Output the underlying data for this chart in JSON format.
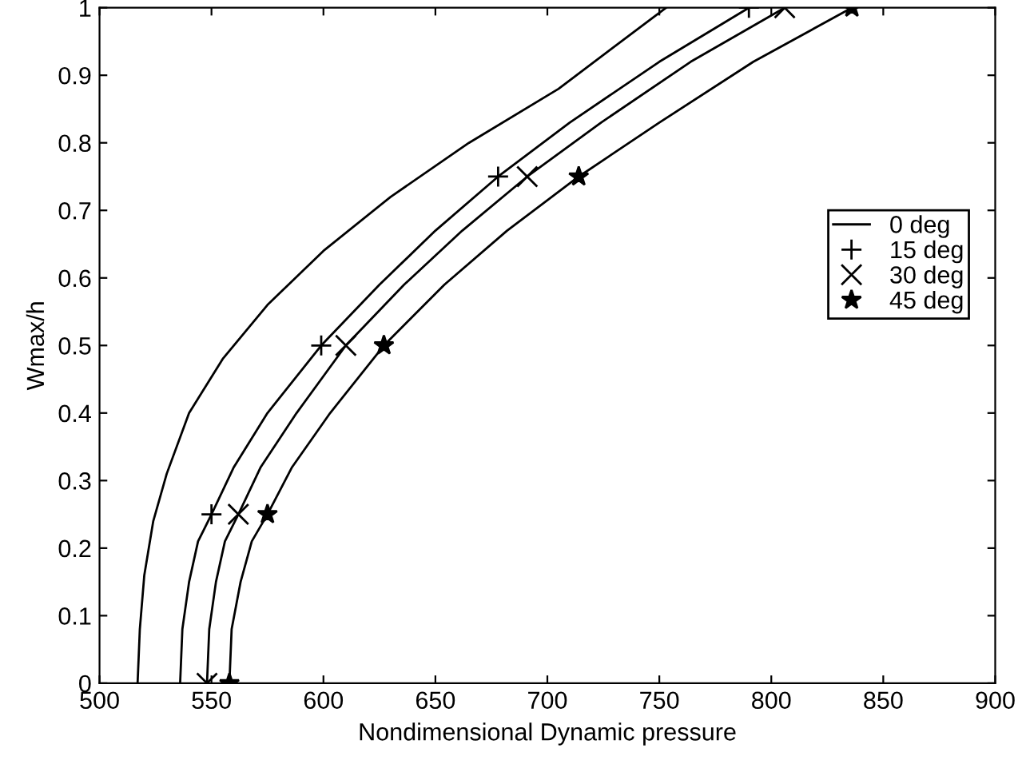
{
  "chart_data": {
    "type": "line",
    "xlabel": "Nondimensional Dynamic pressure",
    "ylabel": "Wmax/h",
    "xlim": [
      500,
      900
    ],
    "xticks": [
      500,
      550,
      600,
      650,
      700,
      750,
      800,
      850,
      900
    ],
    "ylim": [
      0,
      1
    ],
    "yticks": [
      0,
      0.1,
      0.2,
      0.3,
      0.4,
      0.5,
      0.6,
      0.7,
      0.8,
      0.9,
      1
    ],
    "grid": false,
    "legend": "right",
    "series": [
      {
        "name": "0 deg",
        "color": "#000000",
        "marker": "none",
        "x": [
          517,
          518,
          520,
          524,
          530,
          540,
          555,
          575,
          600,
          630,
          665,
          705,
          753
        ],
        "values": [
          0,
          0.08,
          0.16,
          0.24,
          0.31,
          0.4,
          0.48,
          0.56,
          0.64,
          0.72,
          0.8,
          0.88,
          1
        ]
      },
      {
        "color": "#000000",
        "marker": "none",
        "x": [
          536,
          537,
          540,
          544,
          550,
          560,
          575,
          599,
          625,
          650,
          678,
          710,
          750,
          790
        ],
        "values": [
          0,
          0.08,
          0.15,
          0.21,
          0.25,
          0.32,
          0.4,
          0.5,
          0.59,
          0.67,
          0.75,
          0.83,
          0.92,
          1
        ]
      },
      {
        "color": "#000000",
        "marker": "none",
        "x": [
          548,
          549,
          552,
          556,
          562,
          572,
          588,
          610,
          636,
          662,
          691,
          724,
          764,
          806
        ],
        "values": [
          0,
          0.08,
          0.15,
          0.21,
          0.25,
          0.32,
          0.4,
          0.5,
          0.59,
          0.67,
          0.75,
          0.83,
          0.92,
          1
        ]
      },
      {
        "color": "#000000",
        "marker": "none",
        "x": [
          558,
          559,
          563,
          568,
          575,
          586,
          603,
          627,
          654,
          682,
          714,
          750,
          792,
          836
        ],
        "values": [
          0,
          0.08,
          0.15,
          0.21,
          0.25,
          0.32,
          0.4,
          0.5,
          0.59,
          0.67,
          0.75,
          0.83,
          0.92,
          1
        ]
      },
      {
        "name": "15 deg",
        "type": "scatter",
        "color": "#000000",
        "marker": "plus",
        "x": [
          550,
          599,
          678,
          790
        ],
        "values": [
          0.25,
          0.5,
          0.75,
          1
        ]
      },
      {
        "name": "30 deg",
        "type": "scatter",
        "color": "#000000",
        "marker": "cross",
        "x": [
          548,
          562,
          610,
          691,
          806
        ],
        "values": [
          0,
          0.25,
          0.5,
          0.75,
          1
        ]
      },
      {
        "name": "45 deg",
        "type": "scatter",
        "color": "#000000",
        "marker": "star",
        "x": [
          558,
          575,
          627,
          714,
          836
        ],
        "values": [
          0,
          0.25,
          0.5,
          0.75,
          1
        ]
      }
    ]
  }
}
